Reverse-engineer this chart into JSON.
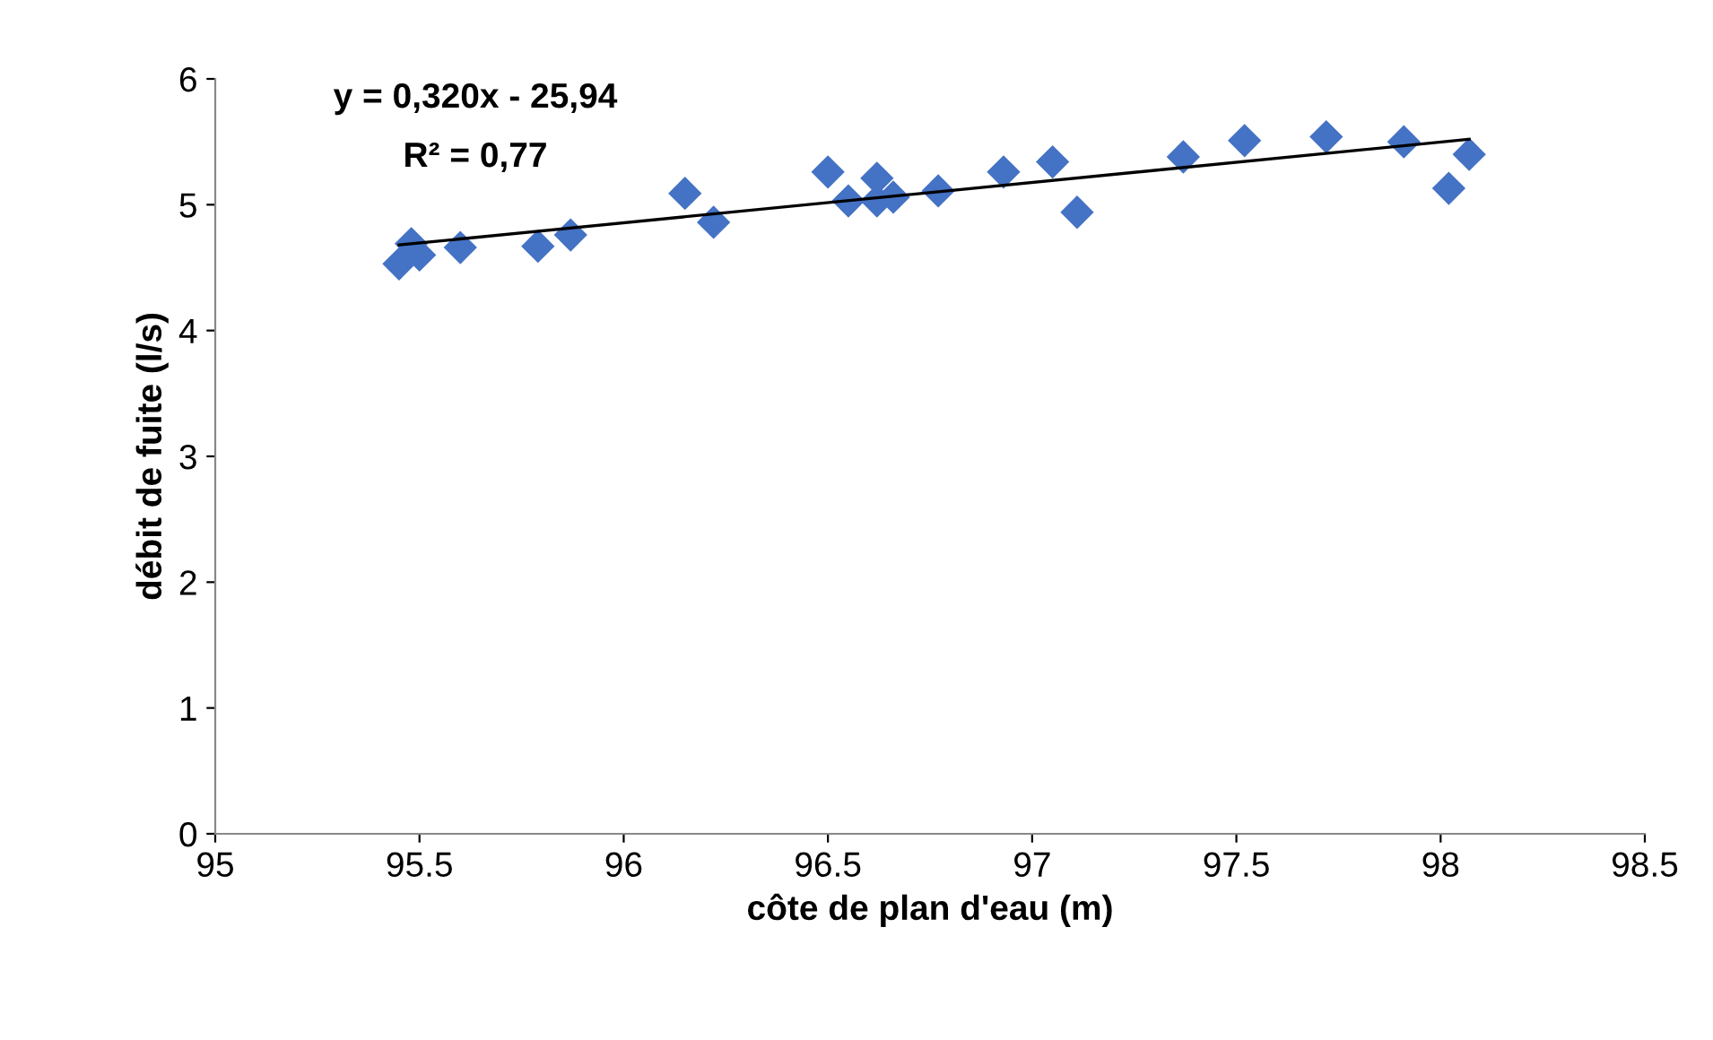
{
  "chart_data": {
    "type": "scatter",
    "xlabel": "côte de plan d'eau (m)",
    "ylabel": "débit de fuite (l/s)",
    "annotations": [
      "y = 0,320x - 25,94",
      "R² = 0,77"
    ],
    "xlim": [
      95,
      98.5
    ],
    "xticks": [
      95,
      95.5,
      96,
      96.5,
      97,
      97.5,
      98,
      98.5
    ],
    "ylim": [
      0,
      6
    ],
    "yticks": [
      0,
      1,
      2,
      3,
      4,
      5,
      6
    ],
    "grid": false,
    "legend": false,
    "series": [
      {
        "type": "scatter",
        "marker": "diamond",
        "color": "#4472c4",
        "x": [
          95.45,
          95.48,
          95.5,
          95.6,
          95.79,
          95.87,
          96.15,
          96.22,
          96.5,
          96.55,
          96.62,
          96.62,
          96.66,
          96.77,
          96.93,
          97.05,
          97.11,
          97.37,
          97.52,
          97.72,
          97.91,
          98.02,
          98.07
        ],
        "values": [
          4.53,
          4.69,
          4.6,
          4.66,
          4.67,
          4.76,
          5.09,
          4.86,
          5.26,
          5.03,
          5.21,
          5.03,
          5.06,
          5.11,
          5.26,
          5.34,
          4.94,
          5.38,
          5.51,
          5.54,
          5.5,
          5.13,
          5.4
        ]
      },
      {
        "type": "line",
        "color": "#000000",
        "line_style": "solid",
        "x": [
          95.45,
          98.07
        ],
        "values": [
          4.68,
          5.52
        ]
      }
    ]
  }
}
